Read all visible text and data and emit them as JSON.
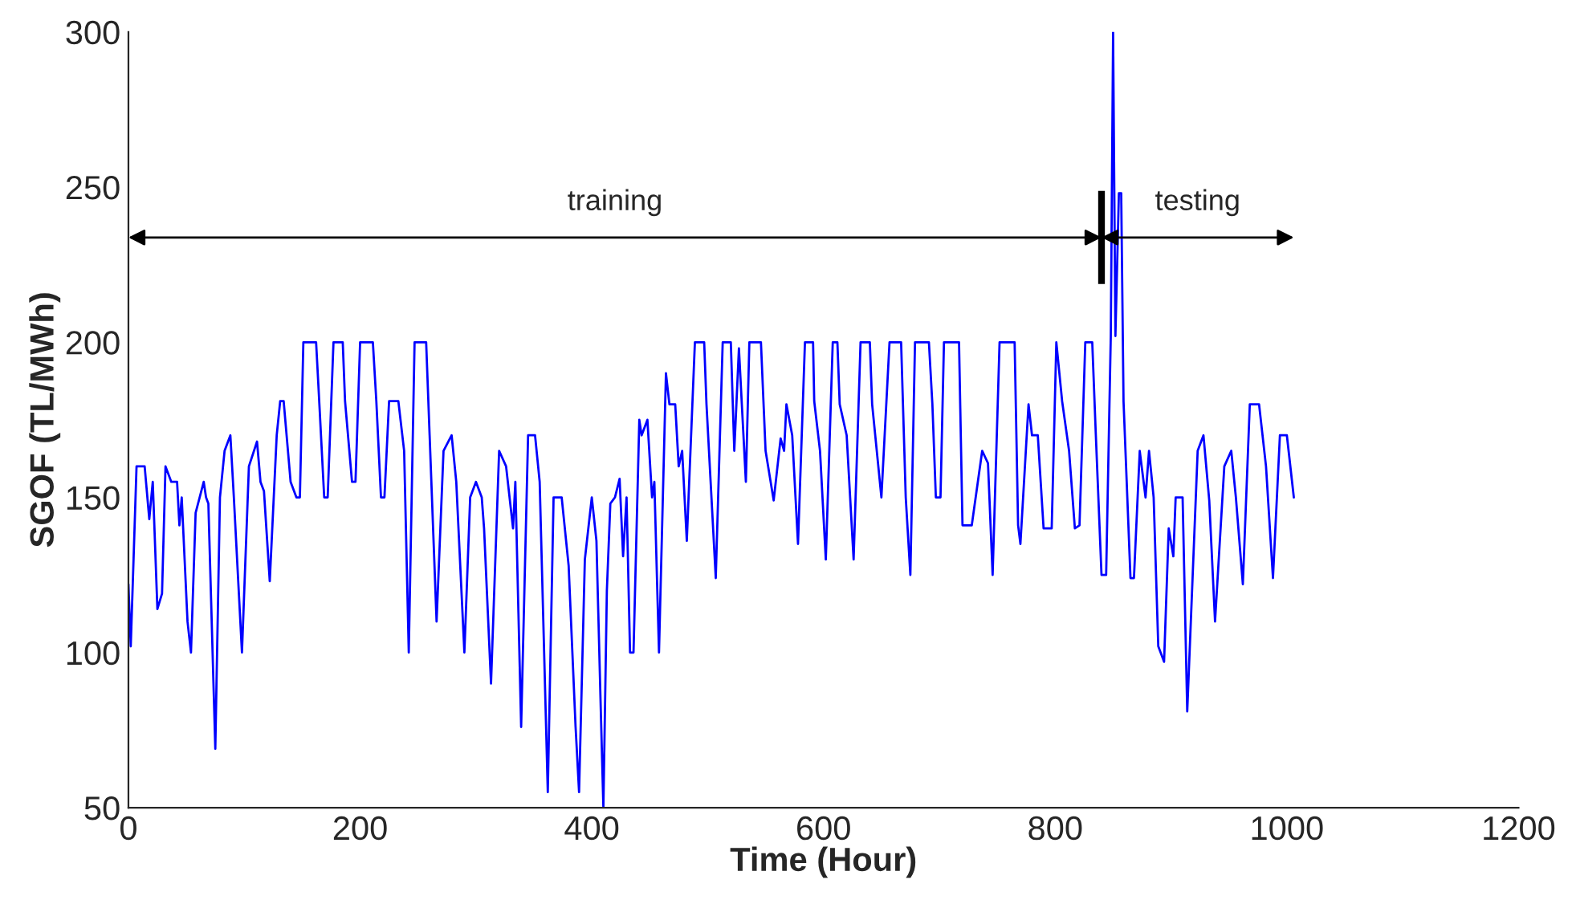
{
  "chart_data": {
    "type": "line",
    "xlabel": "Time (Hour)",
    "ylabel": "SGOF (TL/MWh)",
    "xlim": [
      0,
      1200
    ],
    "xticks": [
      0,
      200,
      400,
      600,
      800,
      1000,
      1200
    ],
    "ylim": [
      50,
      300
    ],
    "yticks": [
      50,
      100,
      150,
      200,
      250,
      300
    ],
    "grid": false,
    "legend": false,
    "series": [
      {
        "color": "#0000ff",
        "x": [
          0,
          2,
          7,
          14,
          18,
          21,
          25,
          29,
          32,
          37,
          42,
          44,
          46,
          51,
          54,
          58,
          65,
          67,
          69,
          75,
          79,
          83,
          88,
          91,
          98,
          104,
          111,
          114,
          117,
          122,
          128,
          131,
          134,
          140,
          145,
          148,
          151,
          162,
          164,
          169,
          172,
          177,
          185,
          187,
          193,
          196,
          200,
          211,
          214,
          218,
          221,
          225,
          233,
          238,
          242,
          247,
          257,
          260,
          266,
          272,
          279,
          283,
          290,
          295,
          300,
          305,
          307,
          313,
          320,
          326,
          332,
          334,
          339,
          345,
          351,
          355,
          362,
          367,
          374,
          380,
          386,
          389,
          394,
          400,
          404,
          408,
          410,
          413,
          416,
          420,
          424,
          427,
          430,
          433,
          436,
          441,
          443,
          448,
          452,
          454,
          458,
          464,
          467,
          472,
          475,
          478,
          482,
          489,
          497,
          499,
          507,
          513,
          520,
          523,
          527,
          533,
          536,
          546,
          550,
          557,
          563,
          566,
          568,
          573,
          578,
          584,
          591,
          592,
          597,
          602,
          608,
          612,
          614,
          620,
          626,
          632,
          640,
          642,
          650,
          657,
          667,
          671,
          675,
          679,
          691,
          694,
          697,
          701,
          704,
          717,
          720,
          728,
          737,
          742,
          746,
          752,
          765,
          768,
          770,
          777,
          780,
          785,
          790,
          797,
          801,
          806,
          812,
          817,
          821,
          826,
          832,
          835,
          840,
          844,
          848,
          850,
          852,
          855,
          857,
          859,
          865,
          868,
          873,
          878,
          881,
          885,
          889,
          894,
          898,
          902,
          904,
          910,
          914,
          923,
          928,
          933,
          938,
          946,
          952,
          956,
          962,
          968,
          976,
          982,
          988,
          994,
          1000,
          1006
        ],
        "values": [
          122,
          102,
          160,
          160,
          143,
          155,
          114,
          119,
          160,
          155,
          155,
          141,
          150,
          110,
          100,
          145,
          155,
          150,
          148,
          69,
          150,
          165,
          170,
          150,
          100,
          160,
          168,
          155,
          152,
          123,
          170,
          181,
          181,
          155,
          150,
          150,
          200,
          200,
          186,
          150,
          150,
          200,
          200,
          181,
          155,
          155,
          200,
          200,
          181,
          150,
          150,
          181,
          181,
          165,
          100,
          200,
          200,
          170,
          110,
          165,
          170,
          155,
          100,
          150,
          155,
          150,
          140,
          90,
          165,
          160,
          140,
          155,
          76,
          170,
          170,
          155,
          55,
          150,
          150,
          128,
          76,
          55,
          130,
          150,
          136,
          78,
          50,
          120,
          148,
          150,
          156,
          131,
          150,
          100,
          100,
          175,
          170,
          175,
          150,
          155,
          100,
          190,
          180,
          180,
          160,
          165,
          136,
          200,
          200,
          180,
          124,
          200,
          200,
          165,
          198,
          155,
          200,
          200,
          165,
          149,
          169,
          165,
          180,
          170,
          135,
          200,
          200,
          181,
          165,
          130,
          200,
          200,
          180,
          170,
          130,
          200,
          200,
          180,
          150,
          200,
          200,
          150,
          125,
          200,
          200,
          180,
          150,
          150,
          200,
          200,
          141,
          141,
          165,
          161,
          125,
          200,
          200,
          141,
          135,
          180,
          170,
          170,
          140,
          140,
          200,
          181,
          165,
          140,
          141,
          200,
          200,
          171,
          125,
          125,
          202,
          300,
          202,
          248,
          248,
          181,
          124,
          124,
          165,
          150,
          165,
          150,
          102,
          97,
          140,
          131,
          150,
          150,
          81,
          165,
          170,
          149,
          110,
          160,
          165,
          150,
          122,
          180,
          180,
          160,
          124,
          170,
          170,
          150
        ]
      }
    ],
    "annotations": [
      "training",
      "testing"
    ],
    "ref_lines": [
      {
        "axis": "x",
        "value": 840,
        "color": "#000000"
      }
    ]
  }
}
